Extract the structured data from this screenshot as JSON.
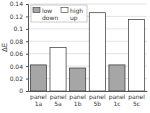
{
  "chart_data": {
    "type": "bar",
    "y_label": "ΔE",
    "categories": [
      "panel 1a",
      "panel 5a",
      "panel 1b",
      "panel 5b",
      "panel 1c",
      "panel 5c"
    ],
    "series": [
      {
        "name": "low down",
        "color": "#a6a6a6",
        "values": [
          0.042,
          null,
          0.037,
          null,
          0.042,
          null
        ]
      },
      {
        "name": "high up",
        "color": "#ffffff",
        "values": [
          null,
          0.07,
          null,
          0.126,
          null,
          0.115
        ]
      }
    ],
    "ylim": [
      0,
      0.14
    ],
    "yticks": [
      0,
      0.02,
      0.04,
      0.06,
      0.08,
      0.1,
      0.12,
      0.14
    ],
    "grid": true,
    "legend": "top-left"
  }
}
